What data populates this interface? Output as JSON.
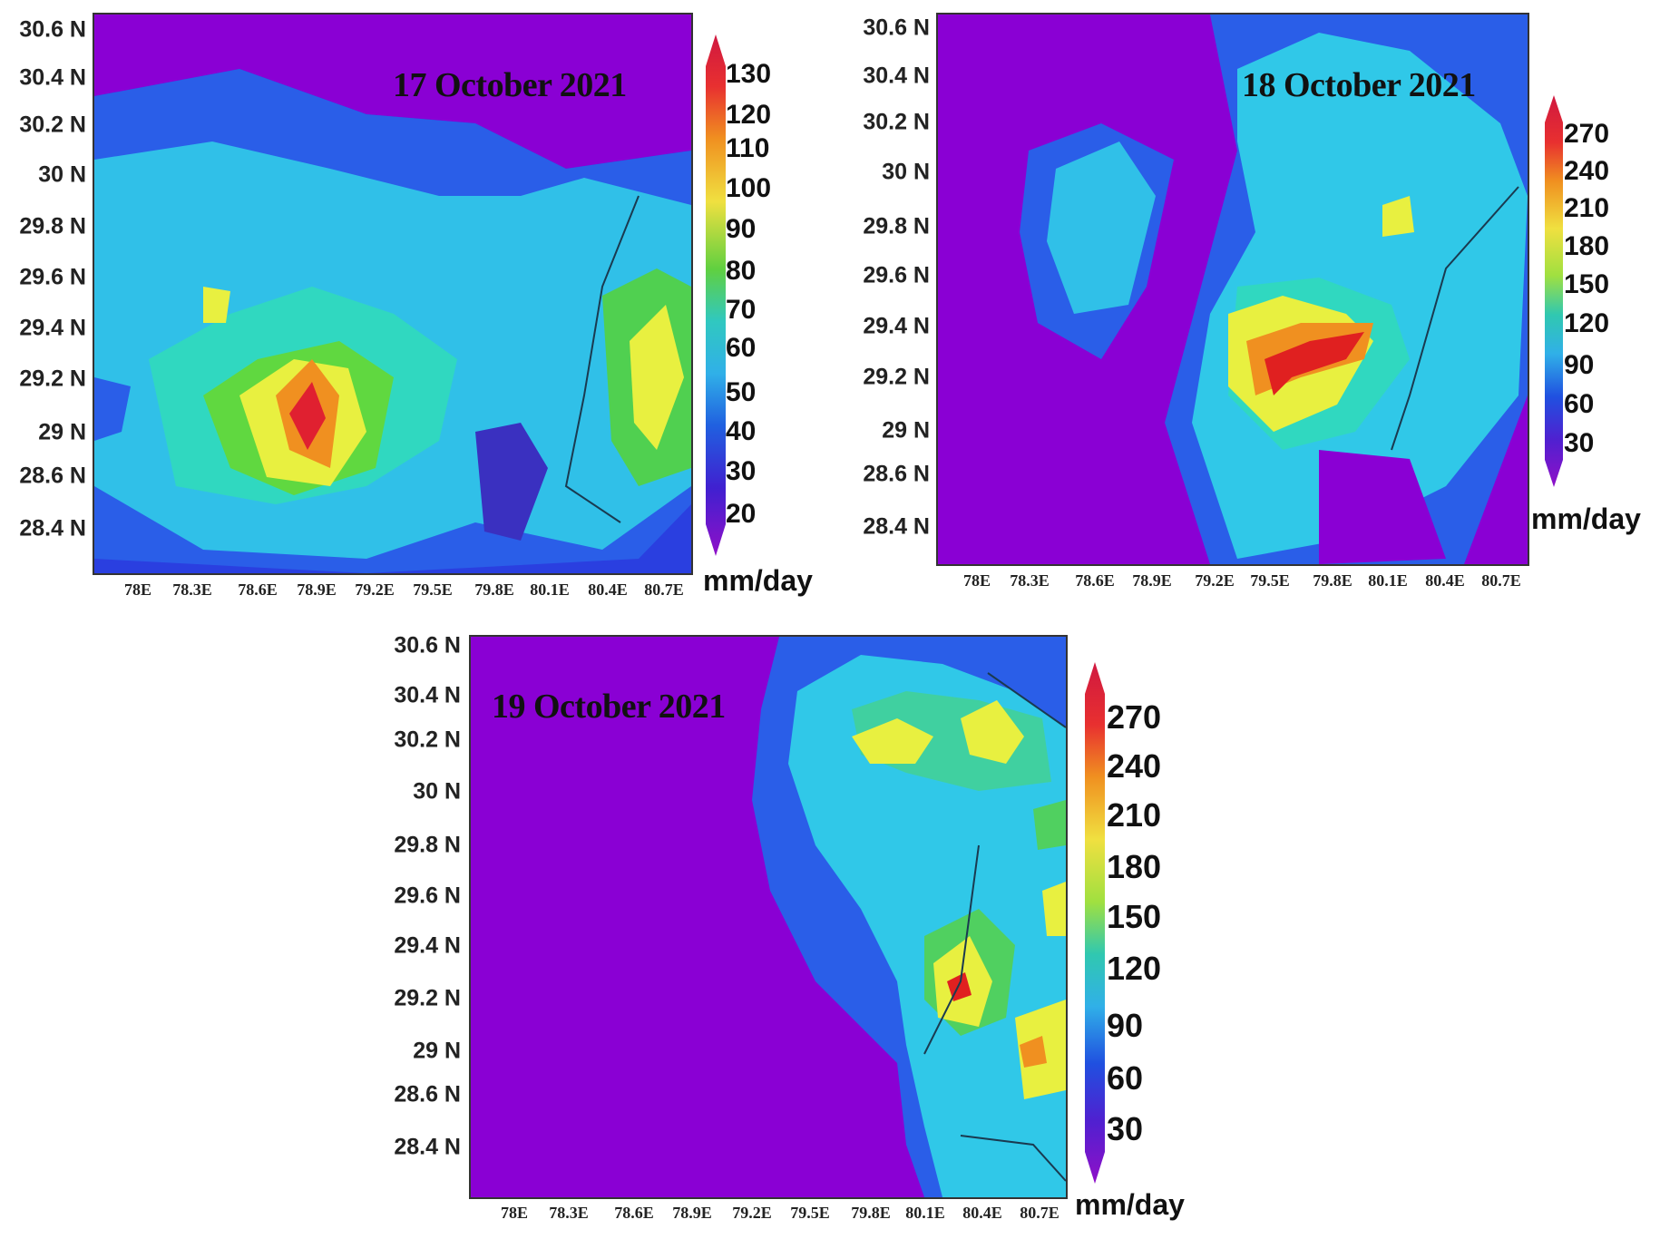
{
  "lat_labels": [
    "30.6 N",
    "30.4 N",
    "30.2 N",
    "30 N",
    "29.8 N",
    "29.6 N",
    "29.4 N",
    "29.2 N",
    "29 N",
    "28.6 N",
    "28.4 N"
  ],
  "lon_labels": [
    "78E",
    "78.3E",
    "78.6E",
    "78.9E",
    "79.2E",
    "79.5E",
    "79.8E",
    "80.1E",
    "80.4E",
    "80.7E"
  ],
  "unit": "mm/day",
  "colors": {
    "background_violet": "#8a00d4",
    "blue": "#2050e0",
    "cyan": "#30c8e8",
    "green": "#40d040",
    "yellow": "#f0f040",
    "orange": "#f08020",
    "red": "#e02020"
  },
  "panels": [
    {
      "date": "17 October 2021",
      "colorbar_ticks": [
        "130",
        "120",
        "110",
        "100",
        "90",
        "80",
        "70",
        "60",
        "50",
        "40",
        "30",
        "20"
      ]
    },
    {
      "date": "18 October 2021",
      "colorbar_ticks": [
        "270",
        "240",
        "210",
        "180",
        "150",
        "120",
        "90",
        "60",
        "30"
      ]
    },
    {
      "date": "19 October 2021",
      "colorbar_ticks": [
        "270",
        "240",
        "210",
        "180",
        "150",
        "120",
        "90",
        "60",
        "30"
      ]
    }
  ]
}
